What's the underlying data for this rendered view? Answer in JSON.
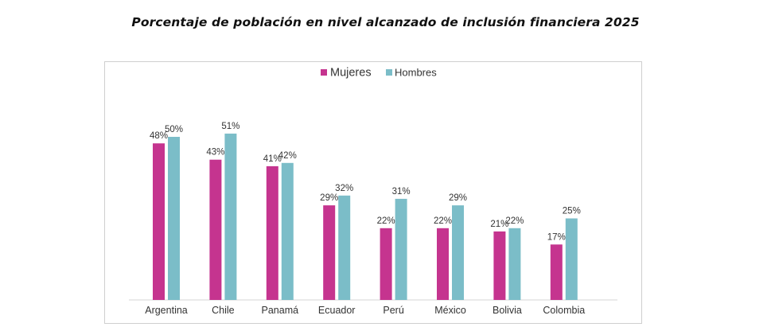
{
  "chart_data": {
    "type": "bar",
    "title": "Porcentaje de población en nivel alcanzado de inclusión financiera 2025",
    "categories": [
      "Argentina",
      "Chile",
      "Panamá",
      "Ecuador",
      "Perú",
      "México",
      "Bolivia",
      "Colombia"
    ],
    "series": [
      {
        "name": "Mujeres",
        "color": "#c5348f",
        "values": [
          48,
          43,
          41,
          29,
          22,
          22,
          21,
          17
        ],
        "labels": [
          "48%",
          "43%",
          "41%",
          "29%",
          "22%",
          "22%",
          "21%",
          "17%"
        ]
      },
      {
        "name": "Hombres",
        "color": "#7bbdc8",
        "values": [
          50,
          51,
          42,
          32,
          31,
          29,
          22,
          25
        ],
        "labels": [
          "50%",
          "51%",
          "42%",
          "32%",
          "31%",
          "29%",
          "22%",
          "25%"
        ]
      }
    ],
    "xlabel": "",
    "ylabel": "",
    "ylim": [
      0,
      60
    ],
    "grid": false,
    "legend": "top-center"
  }
}
